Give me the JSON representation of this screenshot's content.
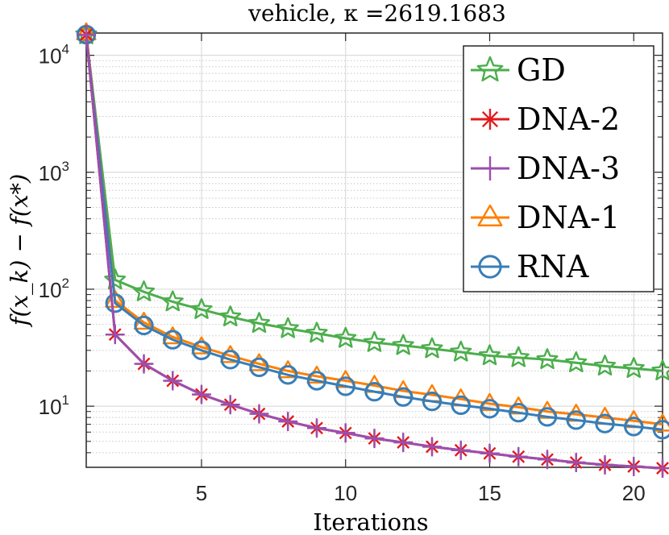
{
  "chart_data": {
    "type": "line",
    "title": "vehicle, κ =2619.1683",
    "xlabel": "Iterations",
    "ylabel": "f(x_k) − f(x*)",
    "yscale": "log",
    "xlim": [
      1,
      21
    ],
    "ylim": [
      3,
      15500
    ],
    "x_ticks": [
      5,
      10,
      15,
      20
    ],
    "y_ticks": [
      {
        "value": 10,
        "base": "10",
        "exp": "1"
      },
      {
        "value": 100,
        "base": "10",
        "exp": "2"
      },
      {
        "value": 1000,
        "base": "10",
        "exp": "3"
      },
      {
        "value": 10000,
        "base": "10",
        "exp": "4"
      }
    ],
    "grid": true,
    "legend_position": "top-right",
    "x": [
      1,
      2,
      3,
      4,
      5,
      6,
      7,
      8,
      9,
      10,
      11,
      12,
      13,
      14,
      15,
      16,
      17,
      18,
      19,
      20,
      21
    ],
    "series": [
      {
        "name": "GD",
        "color": "#4cae4c",
        "marker": "star",
        "values": [
          15000,
          120,
          95,
          78,
          67,
          58,
          51,
          46,
          42,
          38,
          35,
          33,
          31,
          29,
          27,
          26,
          25,
          23.5,
          22,
          21,
          20
        ]
      },
      {
        "name": "DNA-2",
        "color": "#e41a1c",
        "marker": "asterisk",
        "values": [
          15000,
          41,
          23,
          16.5,
          12.6,
          10.3,
          8.6,
          7.4,
          6.5,
          5.9,
          5.3,
          4.9,
          4.5,
          4.2,
          3.95,
          3.7,
          3.5,
          3.3,
          3.15,
          3.05,
          2.95
        ]
      },
      {
        "name": "DNA-3",
        "color": "#9b4fae",
        "marker": "plus",
        "values": [
          15000,
          41,
          23,
          16.5,
          12.6,
          10.3,
          8.6,
          7.4,
          6.5,
          5.9,
          5.3,
          4.9,
          4.5,
          4.2,
          3.95,
          3.7,
          3.5,
          3.3,
          3.15,
          3.05,
          2.95
        ]
      },
      {
        "name": "DNA-1",
        "color": "#ff7f00",
        "marker": "triangle",
        "values": [
          15500,
          80,
          52,
          39,
          32,
          27,
          23,
          20,
          18,
          16.5,
          15,
          13.5,
          12.5,
          11.5,
          10.5,
          9.8,
          9,
          8.5,
          8,
          7.5,
          7
        ]
      },
      {
        "name": "RNA",
        "color": "#377eb8",
        "marker": "circle",
        "values": [
          15000,
          76,
          49,
          37,
          30,
          25,
          21.5,
          18.5,
          16.5,
          14.8,
          13.3,
          12,
          11,
          10.2,
          9.5,
          8.8,
          8.1,
          7.6,
          7.1,
          6.7,
          6.3
        ]
      }
    ]
  }
}
